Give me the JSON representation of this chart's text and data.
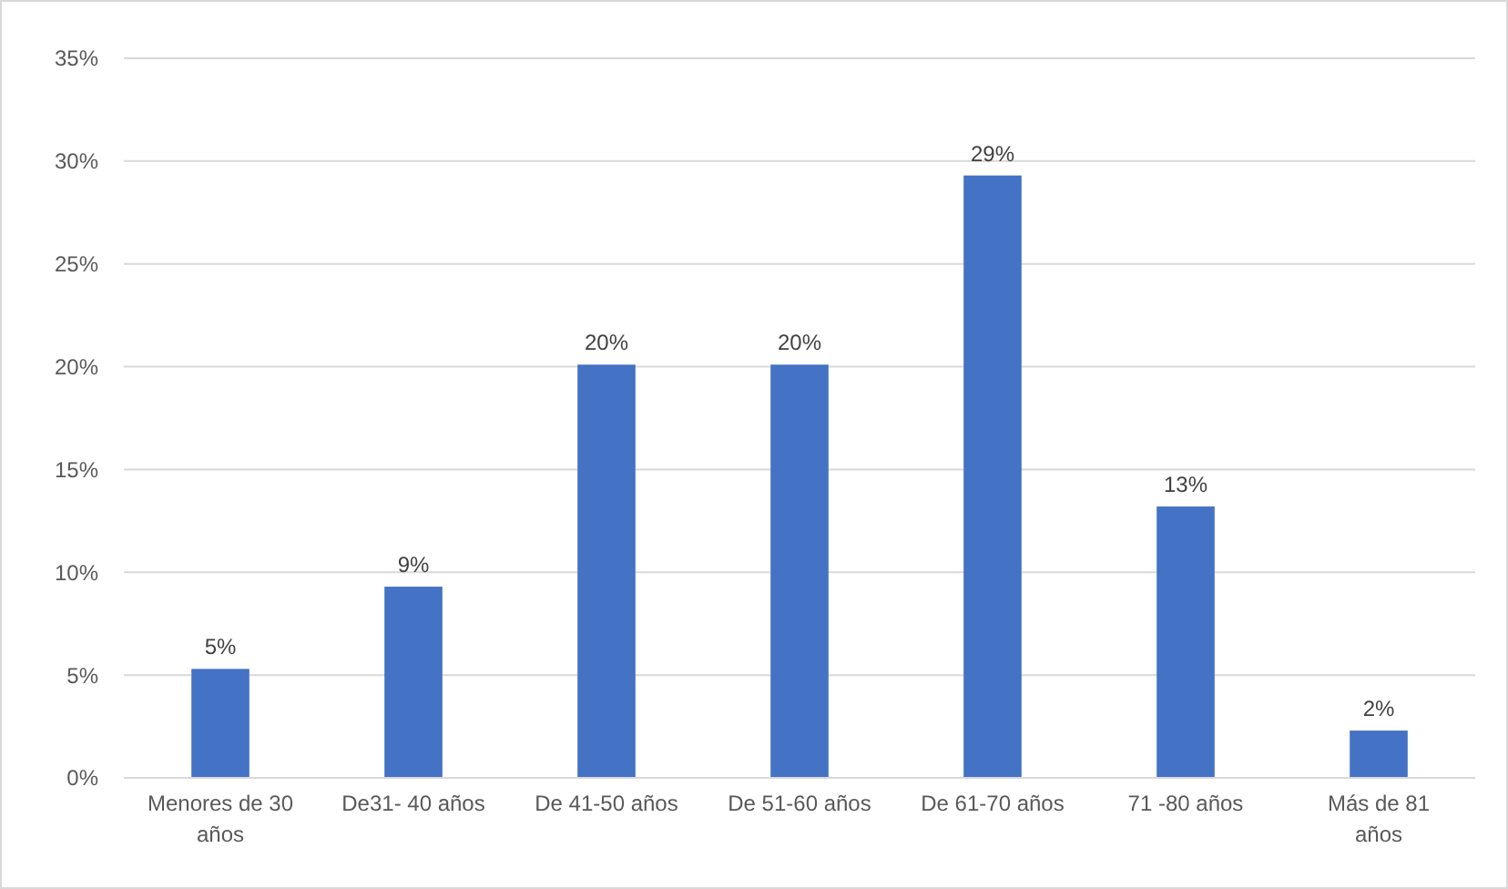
{
  "chart_data": {
    "type": "bar",
    "categories": [
      "Menores de 30 años",
      "De31- 40 años",
      "De 41-50 años",
      "De 51-60 años",
      "De 61-70 años",
      "71 -80 años",
      "Más de 81 años"
    ],
    "values": [
      5.3,
      9.3,
      20.1,
      20.1,
      29.3,
      13.2,
      2.3
    ],
    "value_labels": [
      "5%",
      "9%",
      "20%",
      "20%",
      "29%",
      "13%",
      "2%"
    ],
    "color": "#4472c4",
    "ylim": [
      0,
      35
    ],
    "yticks": [
      {
        "value": 0,
        "label": "0%"
      },
      {
        "value": 5,
        "label": "5%"
      },
      {
        "value": 10,
        "label": "10%"
      },
      {
        "value": 15,
        "label": "15%"
      },
      {
        "value": 20,
        "label": "20%"
      },
      {
        "value": 25,
        "label": "25%"
      },
      {
        "value": 30,
        "label": "30%"
      },
      {
        "value": 35,
        "label": "35%"
      }
    ],
    "grid": "y"
  }
}
